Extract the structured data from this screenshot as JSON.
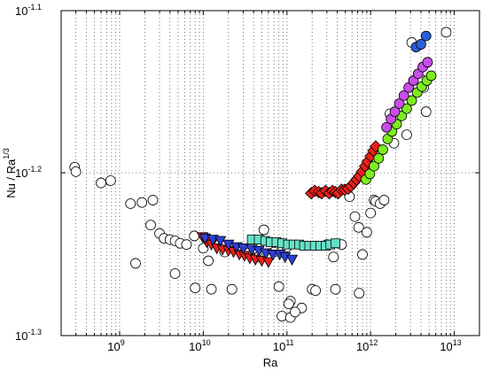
{
  "chart_data": {
    "type": "scatter",
    "xlabel": "Ra",
    "ylabel": {
      "base": "Nu / Ra",
      "exp": "1/3"
    },
    "x_scale": "log",
    "y_scale": "log",
    "xlim": [
      200000000.0,
      20000000000000.0
    ],
    "ylim": [
      0.0501,
      0.0794
    ],
    "grid": "dotted",
    "x_ticks": [
      {
        "value": 1000000000.0,
        "base": "10",
        "exp": "9"
      },
      {
        "value": 10000000000.0,
        "base": "10",
        "exp": "10"
      },
      {
        "value": 100000000000.0,
        "base": "10",
        "exp": "11"
      },
      {
        "value": 1000000000000.0,
        "base": "10",
        "exp": "12"
      },
      {
        "value": 10000000000000.0,
        "base": "10",
        "exp": "13"
      }
    ],
    "y_ticks": [
      {
        "value": 0.0794,
        "base": "10",
        "exp": "-1.1"
      },
      {
        "value": 0.0631,
        "base": "10",
        "exp": "-1.2"
      },
      {
        "value": 0.0501,
        "base": "10",
        "exp": "-1.3"
      }
    ],
    "series": [
      {
        "marker": "circle-open",
        "color": "#ffffff",
        "stroke": "#000000",
        "points": [
          [
            290000000.0,
            0.0636
          ],
          [
            300000000.0,
            0.0632
          ],
          [
            600000000.0,
            0.0622
          ],
          [
            780000000.0,
            0.0624
          ],
          [
            1350000000.0,
            0.0604
          ],
          [
            1850000000.0,
            0.0605
          ],
          [
            2350000000.0,
            0.0586
          ],
          [
            2500000000.0,
            0.0607
          ],
          [
            3000000000.0,
            0.0579
          ],
          [
            3400000000.0,
            0.0575
          ],
          [
            4000000000.0,
            0.0574
          ],
          [
            4600000000.0,
            0.0573
          ],
          [
            5300000000.0,
            0.0571
          ],
          [
            6300000000.0,
            0.057
          ],
          [
            7800000000.0,
            0.0577
          ],
          [
            10000000000.0,
            0.0567
          ],
          [
            11500000000.0,
            0.0557
          ],
          [
            18000000000.0,
            0.0564
          ],
          [
            28000000000.0,
            0.0567
          ],
          [
            35000000000.0,
            0.0563
          ],
          [
            45000000000.0,
            0.056
          ],
          [
            53000000000.0,
            0.0582
          ],
          [
            70000000000.0,
            0.0564
          ],
          [
            80000000000.0,
            0.0537
          ],
          [
            100000000000.0,
            0.0568
          ],
          [
            200000000000.0,
            0.0535
          ],
          [
            300000000000.0,
            0.057
          ],
          [
            360000000000.0,
            0.056
          ],
          [
            450000000000.0,
            0.057
          ],
          [
            560000000000.0,
            0.061
          ],
          [
            650000000000.0,
            0.0593
          ],
          [
            720000000000.0,
            0.0584
          ],
          [
            800000000000.0,
            0.0562
          ],
          [
            900000000000.0,
            0.058
          ],
          [
            1000000000000.0,
            0.0596
          ],
          [
            1100000000000.0,
            0.0607
          ],
          [
            1150000000000.0,
            0.0606
          ],
          [
            1300000000000.0,
            0.0604
          ],
          [
            1450000000000.0,
            0.0607
          ],
          [
            1700000000000.0,
            0.0686
          ],
          [
            1900000000000.0,
            0.0658
          ],
          [
            2700000000000.0,
            0.0666
          ],
          [
            3100000000000.0,
            0.0759
          ],
          [
            4000000000000.0,
            0.072
          ],
          [
            4300000000000.0,
            0.0712
          ],
          [
            4600000000000.0,
            0.0688
          ],
          [
            8000000000000.0,
            0.077
          ],
          [
            1550000000.0,
            0.0555
          ],
          [
            4600000000.0,
            0.0547
          ],
          [
            8000000000.0,
            0.0536
          ],
          [
            12500000000.0,
            0.0535
          ],
          [
            22000000000.0,
            0.0535
          ],
          [
            110000000000.0,
            0.0526
          ],
          [
            150000000000.0,
            0.0521
          ],
          [
            220000000000.0,
            0.0534
          ],
          [
            380000000000.0,
            0.0535
          ],
          [
            730000000000.0,
            0.0532
          ],
          [
            87000000000.0,
            0.0515
          ],
          [
            110000000000.0,
            0.0514
          ],
          [
            125000000000.0,
            0.0518
          ],
          [
            105000000000.0,
            0.0524
          ]
        ]
      },
      {
        "marker": "triangle-down",
        "color": "#e8201a",
        "stroke": "#000000",
        "points": [
          [
            9800000000.0,
            0.0576
          ],
          [
            11000000000.0,
            0.0572
          ],
          [
            12500000000.0,
            0.057
          ],
          [
            14500000000.0,
            0.0567
          ],
          [
            17000000000.0,
            0.0566
          ],
          [
            20000000000.0,
            0.0565
          ],
          [
            23000000000.0,
            0.0564
          ],
          [
            27000000000.0,
            0.0562
          ],
          [
            31000000000.0,
            0.0561
          ],
          [
            36000000000.0,
            0.0559
          ],
          [
            42000000000.0,
            0.0558
          ],
          [
            50000000000.0,
            0.0557
          ],
          [
            60000000000.0,
            0.0556
          ]
        ]
      },
      {
        "marker": "triangle-down",
        "color": "#2d3fd6",
        "stroke": "#000000",
        "points": [
          [
            10500000000.0,
            0.0575
          ],
          [
            13000000000.0,
            0.0574
          ],
          [
            16000000000.0,
            0.0573
          ],
          [
            20000000000.0,
            0.057
          ],
          [
            25000000000.0,
            0.0568
          ],
          [
            30000000000.0,
            0.0567
          ],
          [
            38000000000.0,
            0.0566
          ],
          [
            46000000000.0,
            0.0565
          ],
          [
            56000000000.0,
            0.0563
          ],
          [
            68000000000.0,
            0.0562
          ],
          [
            82000000000.0,
            0.0562
          ],
          [
            95000000000.0,
            0.056
          ],
          [
            115000000000.0,
            0.0558
          ]
        ]
      },
      {
        "marker": "square",
        "color": "#66e0c7",
        "stroke": "#000000",
        "points": [
          [
            38000000000.0,
            0.0574
          ],
          [
            46000000000.0,
            0.0574
          ],
          [
            55000000000.0,
            0.0573
          ],
          [
            64000000000.0,
            0.0572
          ],
          [
            75000000000.0,
            0.0572
          ],
          [
            88000000000.0,
            0.0571
          ],
          [
            103000000000.0,
            0.057
          ],
          [
            120000000000.0,
            0.057
          ],
          [
            140000000000.0,
            0.057
          ],
          [
            160000000000.0,
            0.0569
          ],
          [
            185000000000.0,
            0.0569
          ],
          [
            215000000000.0,
            0.0569
          ],
          [
            250000000000.0,
            0.0569
          ],
          [
            290000000000.0,
            0.0569
          ],
          [
            330000000000.0,
            0.057
          ],
          [
            380000000000.0,
            0.0571
          ]
        ]
      },
      {
        "marker": "diamond",
        "color": "#e8201a",
        "stroke": "#000000",
        "points": [
          [
            195000000000.0,
            0.0613
          ],
          [
            215000000000.0,
            0.0615
          ],
          [
            240000000000.0,
            0.0614
          ],
          [
            260000000000.0,
            0.0613
          ],
          [
            290000000000.0,
            0.0615
          ],
          [
            320000000000.0,
            0.0613
          ],
          [
            350000000000.0,
            0.0615
          ],
          [
            380000000000.0,
            0.0614
          ],
          [
            410000000000.0,
            0.0613
          ],
          [
            450000000000.0,
            0.0616
          ],
          [
            490000000000.0,
            0.0616
          ],
          [
            540000000000.0,
            0.0617
          ],
          [
            580000000000.0,
            0.0619
          ],
          [
            630000000000.0,
            0.0622
          ],
          [
            680000000000.0,
            0.0625
          ],
          [
            730000000000.0,
            0.0628
          ],
          [
            790000000000.0,
            0.0632
          ],
          [
            860000000000.0,
            0.0637
          ],
          [
            920000000000.0,
            0.0641
          ],
          [
            1000000000000.0,
            0.0646
          ],
          [
            1080000000000.0,
            0.0651
          ],
          [
            1150000000000.0,
            0.0655
          ]
        ]
      },
      {
        "marker": "circle",
        "color": "#7ced1f",
        "stroke": "#000000",
        "points": [
          [
            880000000000.0,
            0.0625
          ],
          [
            980000000000.0,
            0.063
          ],
          [
            1100000000000.0,
            0.0637
          ],
          [
            1250000000000.0,
            0.0644
          ],
          [
            1400000000000.0,
            0.0652
          ],
          [
            1600000000000.0,
            0.0662
          ],
          [
            1800000000000.0,
            0.0669
          ],
          [
            2050000000000.0,
            0.0676
          ],
          [
            2350000000000.0,
            0.0684
          ],
          [
            2700000000000.0,
            0.0691
          ],
          [
            3100000000000.0,
            0.0699
          ],
          [
            3600000000000.0,
            0.0707
          ],
          [
            4100000000000.0,
            0.0713
          ],
          [
            4700000000000.0,
            0.0719
          ],
          [
            5300000000000.0,
            0.0724
          ]
        ]
      },
      {
        "marker": "circle",
        "color": "#c94ee8",
        "stroke": "#000000",
        "points": [
          [
            1550000000000.0,
            0.0673
          ],
          [
            1750000000000.0,
            0.0681
          ],
          [
            1950000000000.0,
            0.0688
          ],
          [
            2200000000000.0,
            0.0696
          ],
          [
            2500000000000.0,
            0.0704
          ],
          [
            2850000000000.0,
            0.0712
          ],
          [
            3250000000000.0,
            0.0719
          ],
          [
            3700000000000.0,
            0.0726
          ],
          [
            4200000000000.0,
            0.0733
          ],
          [
            4800000000000.0,
            0.0738
          ]
        ]
      },
      {
        "marker": "circle",
        "color": "#2b5fd9",
        "stroke": "#000000",
        "points": [
          [
            3500000000000.0,
            0.0754
          ],
          [
            4000000000000.0,
            0.0757
          ],
          [
            4600000000000.0,
            0.0766
          ]
        ]
      }
    ]
  }
}
